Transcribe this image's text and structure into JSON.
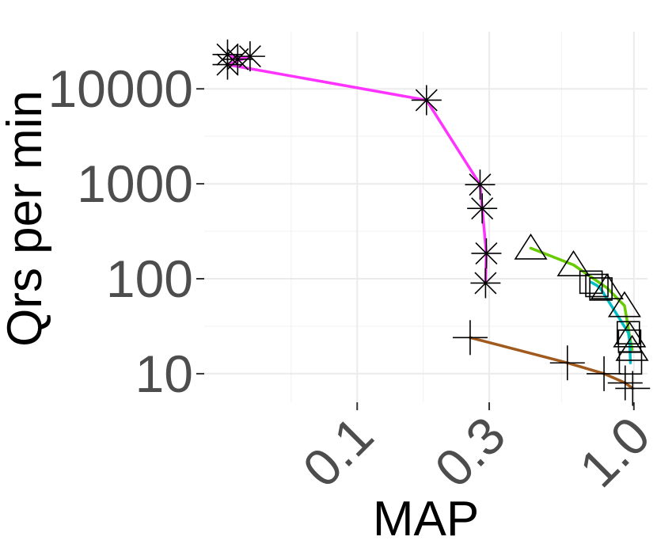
{
  "chart_data": {
    "type": "line",
    "xlabel": "MAP",
    "ylabel": "Qrs per min",
    "x_scale": "log",
    "y_scale": "log",
    "xlim": [
      0.028,
      1.12
    ],
    "ylim": [
      5,
      40000
    ],
    "x_ticks": [
      {
        "value": 0.1,
        "label": "0.1"
      },
      {
        "value": 0.3,
        "label": "0.3"
      },
      {
        "value": 1.0,
        "label": "1.0"
      }
    ],
    "y_ticks": [
      {
        "value": 10,
        "label": "10"
      },
      {
        "value": 100,
        "label": "100"
      },
      {
        "value": 1000,
        "label": "1000"
      },
      {
        "value": 10000,
        "label": "10000"
      }
    ],
    "grid": true,
    "legend": "none",
    "series": [
      {
        "color": "#ff33ff",
        "marker": "asterisk",
        "x": [
          0.034,
          0.037,
          0.041,
          0.034,
          0.178,
          0.278,
          0.283,
          0.293,
          0.291
        ],
        "y": [
          23000,
          20500,
          22000,
          18000,
          7600,
          980,
          550,
          185,
          90
        ]
      },
      {
        "color": "#66cc00",
        "marker": "triangle",
        "x": [
          0.424,
          0.605,
          0.8,
          0.925,
          0.965,
          0.985
        ],
        "y": [
          210,
          140,
          80,
          52,
          25,
          18
        ]
      },
      {
        "color": "#00bfc4",
        "marker": "square",
        "x": [
          0.7,
          0.735,
          0.76,
          0.955,
          0.965,
          0.972
        ],
        "y": [
          92,
          85,
          78,
          27,
          22,
          13
        ]
      },
      {
        "color": "#a05a1e",
        "marker": "plus",
        "x": [
          0.256,
          0.575,
          0.78,
          0.93,
          0.99
        ],
        "y": [
          24,
          13,
          10,
          8,
          7
        ]
      }
    ]
  }
}
